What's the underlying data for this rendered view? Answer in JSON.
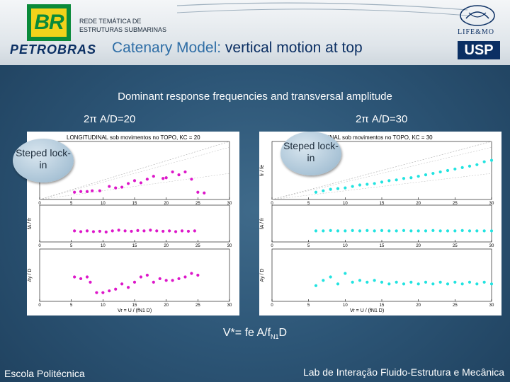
{
  "header": {
    "brand_logo_text": "BR",
    "brand_name": "PETROBRAS",
    "rede_line1": "REDE TEMÁTICA DE",
    "rede_line2": "ESTRUTURAS SUBMARINAS",
    "title_prefix": "Catenary Model: ",
    "title_highlight": "vertical motion at top",
    "life_text": "LIFE&MO",
    "usp_text": "USP"
  },
  "subtitle": "Dominant response frequencies and transversal amplitude",
  "left_label": "2π A/D=20",
  "right_label": "2π A/D=30",
  "left_bubble": "Steped lock-in",
  "right_bubble": "Steped lock-in",
  "formula": {
    "main": "V*= fe A/f",
    "sub": "N1",
    "tail": "D"
  },
  "footer": {
    "left": "Escola Politécnica",
    "right": "Lab de Interação Fluido-Estrutura e Mecânica"
  },
  "colors": {
    "left_series": "#dd17c9",
    "right_series": "#22e3e0",
    "accent": "#0b2f63"
  },
  "chart_data": [
    {
      "type": "scatter",
      "title": "LONGITUDINAL sob movimentos no TOPO, KC = 20",
      "xlabel": "Vr = U / (fN1 D)",
      "xlim": [
        0,
        30
      ],
      "xticks": [
        "0",
        "5",
        "10",
        "15",
        "20",
        "25",
        "30"
      ],
      "subplots": [
        {
          "ylabel": "fr / fe",
          "ylim": [
            0,
            4
          ],
          "points": [
            [
              5.5,
              0.5
            ],
            [
              6.5,
              0.55
            ],
            [
              7.5,
              0.55
            ],
            [
              8.3,
              0.6
            ],
            [
              9.5,
              0.6
            ],
            [
              11,
              0.9
            ],
            [
              12,
              0.8
            ],
            [
              13,
              0.85
            ],
            [
              14,
              1.1
            ],
            [
              15,
              1.3
            ],
            [
              16,
              1.15
            ],
            [
              17,
              1.4
            ],
            [
              18,
              1.6
            ],
            [
              19.5,
              1.45
            ],
            [
              20,
              1.5
            ],
            [
              21,
              1.9
            ],
            [
              22,
              1.7
            ],
            [
              23,
              1.9
            ],
            [
              24,
              1.4
            ],
            [
              25,
              0.5
            ],
            [
              26,
              0.45
            ]
          ]
        },
        {
          "ylabel": "fA / fr",
          "ylim": [
            0,
            1
          ],
          "points": [
            [
              5.5,
              0.3
            ],
            [
              6.5,
              0.28
            ],
            [
              7.5,
              0.3
            ],
            [
              8.5,
              0.28
            ],
            [
              9.5,
              0.29
            ],
            [
              10.5,
              0.27
            ],
            [
              11.5,
              0.3
            ],
            [
              12.5,
              0.32
            ],
            [
              13.5,
              0.3
            ],
            [
              14.5,
              0.29
            ],
            [
              15.5,
              0.31
            ],
            [
              16.5,
              0.3
            ],
            [
              17.5,
              0.32
            ],
            [
              18.5,
              0.3
            ],
            [
              19.5,
              0.29
            ],
            [
              20.5,
              0.3
            ],
            [
              21.5,
              0.28
            ],
            [
              22.5,
              0.3
            ],
            [
              23.5,
              0.29
            ],
            [
              24.5,
              0.3
            ]
          ]
        },
        {
          "ylabel": "Ay / D",
          "ylim": [
            0,
            1.5
          ],
          "points": [
            [
              5.5,
              0.7
            ],
            [
              6.5,
              0.65
            ],
            [
              7.5,
              0.7
            ],
            [
              8,
              0.55
            ],
            [
              9,
              0.25
            ],
            [
              10,
              0.25
            ],
            [
              11,
              0.3
            ],
            [
              12,
              0.35
            ],
            [
              13,
              0.5
            ],
            [
              14,
              0.4
            ],
            [
              15,
              0.55
            ],
            [
              16,
              0.7
            ],
            [
              17,
              0.75
            ],
            [
              18,
              0.55
            ],
            [
              19,
              0.65
            ],
            [
              20,
              0.6
            ],
            [
              21,
              0.6
            ],
            [
              22,
              0.65
            ],
            [
              23,
              0.7
            ],
            [
              24,
              0.8
            ],
            [
              25,
              0.75
            ]
          ]
        }
      ]
    },
    {
      "type": "scatter",
      "title": "LONGITUDINAL sob movimentos no TOPO, KC = 30",
      "xlabel": "Vr = U / (fN1 D)",
      "xlim": [
        0,
        30
      ],
      "xticks": [
        "0",
        "5",
        "10",
        "15",
        "20",
        "25",
        "30"
      ],
      "subplots": [
        {
          "ylabel": "fr / fe",
          "ylim": [
            0,
            4
          ],
          "points": [
            [
              6,
              0.5
            ],
            [
              7,
              0.6
            ],
            [
              8,
              0.7
            ],
            [
              9,
              0.75
            ],
            [
              10,
              0.8
            ],
            [
              11,
              0.9
            ],
            [
              12,
              1.0
            ],
            [
              13,
              1.05
            ],
            [
              14,
              1.1
            ],
            [
              15,
              1.2
            ],
            [
              16,
              1.3
            ],
            [
              17,
              1.35
            ],
            [
              18,
              1.45
            ],
            [
              19,
              1.5
            ],
            [
              20,
              1.6
            ],
            [
              21,
              1.7
            ],
            [
              22,
              1.8
            ],
            [
              23,
              1.9
            ],
            [
              24,
              2.0
            ],
            [
              25,
              2.1
            ],
            [
              26,
              2.2
            ],
            [
              27,
              2.3
            ],
            [
              28,
              2.4
            ],
            [
              29,
              2.6
            ],
            [
              30,
              2.7
            ]
          ]
        },
        {
          "ylabel": "fA / fr",
          "ylim": [
            0,
            1
          ],
          "points": [
            [
              6,
              0.3
            ],
            [
              7,
              0.3
            ],
            [
              8,
              0.31
            ],
            [
              9,
              0.3
            ],
            [
              10,
              0.3
            ],
            [
              11,
              0.31
            ],
            [
              12,
              0.3
            ],
            [
              13,
              0.31
            ],
            [
              14,
              0.3
            ],
            [
              15,
              0.31
            ],
            [
              16,
              0.3
            ],
            [
              17,
              0.3
            ],
            [
              18,
              0.31
            ],
            [
              19,
              0.3
            ],
            [
              20,
              0.3
            ],
            [
              21,
              0.3
            ],
            [
              22,
              0.31
            ],
            [
              23,
              0.3
            ],
            [
              24,
              0.3
            ],
            [
              25,
              0.3
            ],
            [
              26,
              0.31
            ],
            [
              27,
              0.3
            ],
            [
              28,
              0.3
            ],
            [
              29,
              0.3
            ],
            [
              30,
              0.3
            ]
          ]
        },
        {
          "ylabel": "Ay / D",
          "ylim": [
            0,
            1.5
          ],
          "points": [
            [
              6,
              0.45
            ],
            [
              7,
              0.6
            ],
            [
              8,
              0.7
            ],
            [
              9,
              0.5
            ],
            [
              10,
              0.8
            ],
            [
              11,
              0.55
            ],
            [
              12,
              0.6
            ],
            [
              13,
              0.55
            ],
            [
              14,
              0.6
            ],
            [
              15,
              0.55
            ],
            [
              16,
              0.5
            ],
            [
              17,
              0.55
            ],
            [
              18,
              0.5
            ],
            [
              19,
              0.55
            ],
            [
              20,
              0.5
            ],
            [
              21,
              0.55
            ],
            [
              22,
              0.5
            ],
            [
              23,
              0.55
            ],
            [
              24,
              0.5
            ],
            [
              25,
              0.55
            ],
            [
              26,
              0.5
            ],
            [
              27,
              0.55
            ],
            [
              28,
              0.5
            ],
            [
              29,
              0.55
            ],
            [
              30,
              0.5
            ]
          ]
        }
      ]
    }
  ]
}
